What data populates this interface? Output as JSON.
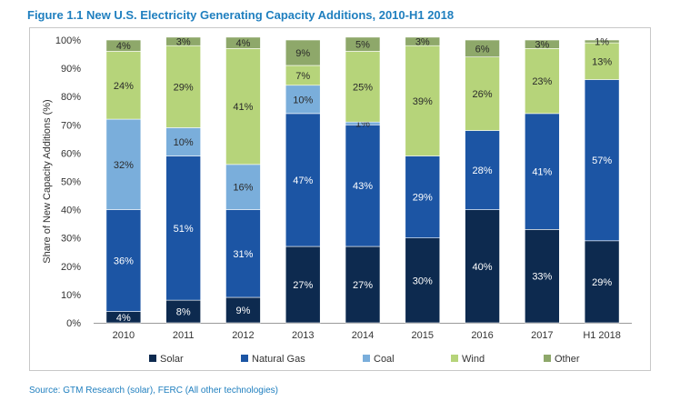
{
  "figure": {
    "title": "Figure 1.1 New U.S. Electricity Generating Capacity Additions, 2010-H1 2018",
    "source": "Source:  GTM Research (solar), FERC (All other technologies)"
  },
  "chart_data": {
    "type": "bar",
    "stacked": true,
    "categories": [
      "2010",
      "2011",
      "2012",
      "2013",
      "2014",
      "2015",
      "2016",
      "2017",
      "H1 2018"
    ],
    "series": [
      {
        "name": "Solar",
        "color": "#0d2a4f",
        "values": [
          4,
          8,
          9,
          27,
          27,
          30,
          40,
          33,
          29
        ],
        "labels": [
          "4%",
          "8%",
          "9%",
          "27%",
          "27%",
          "30%",
          "40%",
          "33%",
          "29%"
        ]
      },
      {
        "name": "Natural Gas",
        "color": "#1c55a4",
        "values": [
          36,
          51,
          31,
          47,
          43,
          29,
          28,
          41,
          57
        ],
        "labels": [
          "36%",
          "51%",
          "31%",
          "47%",
          "43%",
          "29%",
          "28%",
          "41%",
          "57%"
        ]
      },
      {
        "name": "Coal",
        "color": "#7aaedb",
        "values": [
          32,
          10,
          16,
          10,
          1,
          0,
          0,
          0,
          0
        ],
        "labels": [
          "32%",
          "10%",
          "16%",
          "10%",
          "1%",
          "",
          "",
          "",
          ""
        ]
      },
      {
        "name": "Wind",
        "color": "#b6d47a",
        "values": [
          24,
          29,
          41,
          7,
          25,
          39,
          26,
          23,
          13
        ],
        "labels": [
          "24%",
          "29%",
          "41%",
          "7%",
          "25%",
          "39%",
          "26%",
          "23%",
          "13%"
        ]
      },
      {
        "name": "Other",
        "color": "#8ea86a",
        "values": [
          4,
          3,
          4,
          9,
          5,
          3,
          6,
          3,
          1
        ],
        "labels": [
          "4%",
          "3%",
          "4%",
          "9%",
          "5%",
          "3%",
          "6%",
          "3%",
          "1%"
        ]
      }
    ],
    "title": "Figure 1.1 New U.S. Electricity Generating Capacity Additions, 2010-H1 2018",
    "xlabel": "",
    "ylabel": "Share of New Capacity Additions (%)",
    "ylim": [
      0,
      100
    ],
    "yticks": [
      "0%",
      "10%",
      "20%",
      "30%",
      "40%",
      "50%",
      "60%",
      "70%",
      "80%",
      "90%",
      "100%"
    ],
    "grid": false,
    "legend": "bottom"
  }
}
